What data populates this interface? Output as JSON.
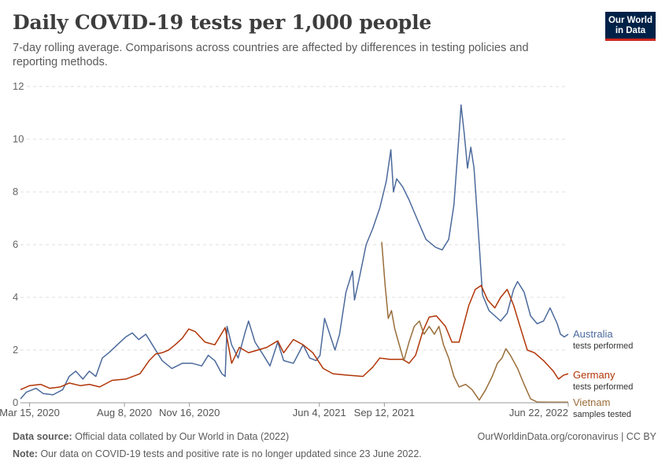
{
  "header": {
    "title": "Daily COVID-19 tests per 1,000 people",
    "subtitle": "7-day rolling average. Comparisons across countries are affected by differences in testing policies and reporting methods.",
    "logo_line1": "Our World",
    "logo_line2": "in Data"
  },
  "footer": {
    "source_label": "Data source:",
    "source_text": "Official data collated by Our World in Data (2022)",
    "link_text": "OurWorldinData.org/coronavirus | CC BY",
    "note_label": "Note:",
    "note_text": "Our data on COVID-19 tests and positive rate is no longer updated since 23 June 2022."
  },
  "colors": {
    "australia": "#4c6a9c",
    "germany": "#b13507",
    "vietnam": "#996d39",
    "grid": "#dddddd",
    "axis": "#999999",
    "brand": "#002147",
    "brand_accent": "#ce261e"
  },
  "chart_data": {
    "type": "line",
    "title": "Daily COVID-19 tests per 1,000 people",
    "xlabel": "",
    "ylabel": "",
    "ylim": [
      0,
      12
    ],
    "yticks": [
      "0",
      "2",
      "4",
      "6",
      "8",
      "10",
      "12"
    ],
    "x_range": [
      "2020-03-01",
      "2022-06-22"
    ],
    "x_ticks": [
      {
        "date": "2020-03-15",
        "label": "Mar 15, 2020"
      },
      {
        "date": "2020-08-08",
        "label": "Aug 8, 2020"
      },
      {
        "date": "2020-11-16",
        "label": "Nov 16, 2020"
      },
      {
        "date": "2021-06-04",
        "label": "Jun 4, 2021"
      },
      {
        "date": "2021-09-12",
        "label": "Sep 12, 2021"
      },
      {
        "date": "2022-06-22",
        "label": "Jun 22, 2022"
      }
    ],
    "grid": true,
    "legend_placement": "right (inline labels)",
    "series": [
      {
        "name": "Australia",
        "sublabel": "tests performed",
        "color": "#4c6a9c",
        "points": [
          [
            "2020-03-01",
            0.15
          ],
          [
            "2020-03-10",
            0.4
          ],
          [
            "2020-03-25",
            0.55
          ],
          [
            "2020-04-05",
            0.35
          ],
          [
            "2020-04-20",
            0.3
          ],
          [
            "2020-05-05",
            0.5
          ],
          [
            "2020-05-15",
            1.0
          ],
          [
            "2020-05-25",
            1.2
          ],
          [
            "2020-06-05",
            0.9
          ],
          [
            "2020-06-15",
            1.2
          ],
          [
            "2020-06-25",
            1.0
          ],
          [
            "2020-07-05",
            1.7
          ],
          [
            "2020-07-15",
            1.9
          ],
          [
            "2020-07-28",
            2.2
          ],
          [
            "2020-08-10",
            2.5
          ],
          [
            "2020-08-20",
            2.65
          ],
          [
            "2020-08-30",
            2.4
          ],
          [
            "2020-09-10",
            2.6
          ],
          [
            "2020-09-20",
            2.2
          ],
          [
            "2020-10-05",
            1.6
          ],
          [
            "2020-10-20",
            1.3
          ],
          [
            "2020-11-05",
            1.5
          ],
          [
            "2020-11-20",
            1.5
          ],
          [
            "2020-12-05",
            1.4
          ],
          [
            "2020-12-15",
            1.8
          ],
          [
            "2020-12-25",
            1.6
          ],
          [
            "2021-01-05",
            1.1
          ],
          [
            "2021-01-10",
            1.0
          ],
          [
            "2021-01-13",
            2.9
          ],
          [
            "2021-01-20",
            2.2
          ],
          [
            "2021-01-30",
            1.7
          ],
          [
            "2021-02-10",
            2.7
          ],
          [
            "2021-02-15",
            3.1
          ],
          [
            "2021-02-25",
            2.3
          ],
          [
            "2021-03-10",
            1.8
          ],
          [
            "2021-03-20",
            1.4
          ],
          [
            "2021-04-01",
            2.3
          ],
          [
            "2021-04-10",
            1.6
          ],
          [
            "2021-04-25",
            1.5
          ],
          [
            "2021-05-10",
            2.2
          ],
          [
            "2021-05-20",
            1.7
          ],
          [
            "2021-05-30",
            1.6
          ],
          [
            "2021-06-05",
            1.8
          ],
          [
            "2021-06-12",
            3.2
          ],
          [
            "2021-06-20",
            2.6
          ],
          [
            "2021-06-28",
            2.0
          ],
          [
            "2021-07-05",
            2.6
          ],
          [
            "2021-07-15",
            4.2
          ],
          [
            "2021-07-25",
            5.0
          ],
          [
            "2021-07-28",
            3.9
          ],
          [
            "2021-08-05",
            4.8
          ],
          [
            "2021-08-15",
            6.0
          ],
          [
            "2021-08-25",
            6.6
          ],
          [
            "2021-09-05",
            7.4
          ],
          [
            "2021-09-15",
            8.4
          ],
          [
            "2021-09-22",
            9.6
          ],
          [
            "2021-09-26",
            8.0
          ],
          [
            "2021-10-01",
            8.5
          ],
          [
            "2021-10-10",
            8.2
          ],
          [
            "2021-10-20",
            7.7
          ],
          [
            "2021-11-01",
            7.0
          ],
          [
            "2021-11-15",
            6.2
          ],
          [
            "2021-11-30",
            5.9
          ],
          [
            "2021-12-10",
            5.8
          ],
          [
            "2021-12-20",
            6.2
          ],
          [
            "2021-12-28",
            7.5
          ],
          [
            "2022-01-05",
            10.2
          ],
          [
            "2022-01-08",
            11.3
          ],
          [
            "2022-01-13",
            10.2
          ],
          [
            "2022-01-18",
            8.9
          ],
          [
            "2022-01-23",
            9.7
          ],
          [
            "2022-01-28",
            8.9
          ],
          [
            "2022-02-05",
            6.0
          ],
          [
            "2022-02-10",
            4.1
          ],
          [
            "2022-02-20",
            3.5
          ],
          [
            "2022-03-01",
            3.3
          ],
          [
            "2022-03-10",
            3.1
          ],
          [
            "2022-03-20",
            3.4
          ],
          [
            "2022-03-30",
            4.3
          ],
          [
            "2022-04-05",
            4.6
          ],
          [
            "2022-04-15",
            4.2
          ],
          [
            "2022-04-25",
            3.3
          ],
          [
            "2022-05-05",
            3.0
          ],
          [
            "2022-05-15",
            3.1
          ],
          [
            "2022-05-25",
            3.6
          ],
          [
            "2022-06-05",
            3.0
          ],
          [
            "2022-06-10",
            2.6
          ],
          [
            "2022-06-16",
            2.5
          ],
          [
            "2022-06-22",
            2.6
          ]
        ]
      },
      {
        "name": "Germany",
        "sublabel": "tests performed",
        "color": "#b13507",
        "points": [
          [
            "2020-03-01",
            0.5
          ],
          [
            "2020-03-15",
            0.65
          ],
          [
            "2020-04-01",
            0.7
          ],
          [
            "2020-04-15",
            0.55
          ],
          [
            "2020-05-01",
            0.6
          ],
          [
            "2020-05-15",
            0.75
          ],
          [
            "2020-06-01",
            0.65
          ],
          [
            "2020-06-15",
            0.7
          ],
          [
            "2020-07-01",
            0.6
          ],
          [
            "2020-07-20",
            0.85
          ],
          [
            "2020-08-10",
            0.9
          ],
          [
            "2020-09-01",
            1.1
          ],
          [
            "2020-09-15",
            1.6
          ],
          [
            "2020-09-25",
            1.85
          ],
          [
            "2020-10-05",
            1.9
          ],
          [
            "2020-10-15",
            2.0
          ],
          [
            "2020-10-25",
            2.2
          ],
          [
            "2020-11-05",
            2.45
          ],
          [
            "2020-11-15",
            2.8
          ],
          [
            "2020-11-25",
            2.7
          ],
          [
            "2020-12-10",
            2.3
          ],
          [
            "2020-12-25",
            2.2
          ],
          [
            "2021-01-10",
            2.85
          ],
          [
            "2021-01-20",
            1.5
          ],
          [
            "2021-02-01",
            2.1
          ],
          [
            "2021-02-15",
            1.9
          ],
          [
            "2021-03-01",
            2.0
          ],
          [
            "2021-03-15",
            2.1
          ],
          [
            "2021-04-01",
            2.35
          ],
          [
            "2021-04-10",
            1.9
          ],
          [
            "2021-04-25",
            2.4
          ],
          [
            "2021-05-10",
            2.2
          ],
          [
            "2021-05-25",
            1.9
          ],
          [
            "2021-06-10",
            1.3
          ],
          [
            "2021-06-25",
            1.1
          ],
          [
            "2021-07-15",
            1.05
          ],
          [
            "2021-08-10",
            1.0
          ],
          [
            "2021-08-25",
            1.35
          ],
          [
            "2021-09-05",
            1.7
          ],
          [
            "2021-09-20",
            1.65
          ],
          [
            "2021-10-10",
            1.65
          ],
          [
            "2021-10-20",
            1.5
          ],
          [
            "2021-10-30",
            1.8
          ],
          [
            "2021-11-10",
            2.7
          ],
          [
            "2021-11-20",
            3.25
          ],
          [
            "2021-12-01",
            3.3
          ],
          [
            "2021-12-15",
            2.9
          ],
          [
            "2021-12-25",
            2.3
          ],
          [
            "2022-01-05",
            2.3
          ],
          [
            "2022-01-20",
            3.7
          ],
          [
            "2022-01-30",
            4.3
          ],
          [
            "2022-02-08",
            4.45
          ],
          [
            "2022-02-18",
            3.9
          ],
          [
            "2022-03-01",
            3.6
          ],
          [
            "2022-03-10",
            4.0
          ],
          [
            "2022-03-20",
            4.3
          ],
          [
            "2022-03-30",
            3.7
          ],
          [
            "2022-04-10",
            2.8
          ],
          [
            "2022-04-20",
            2.0
          ],
          [
            "2022-05-01",
            1.9
          ],
          [
            "2022-05-15",
            1.6
          ],
          [
            "2022-05-30",
            1.2
          ],
          [
            "2022-06-07",
            0.9
          ],
          [
            "2022-06-15",
            1.05
          ],
          [
            "2022-06-22",
            1.1
          ]
        ]
      },
      {
        "name": "Vietnam",
        "sublabel": "samples tested",
        "color": "#996d39",
        "points": [
          [
            "2021-09-08",
            6.1
          ],
          [
            "2021-09-13",
            4.5
          ],
          [
            "2021-09-18",
            3.2
          ],
          [
            "2021-09-23",
            3.5
          ],
          [
            "2021-09-28",
            2.8
          ],
          [
            "2021-10-05",
            2.2
          ],
          [
            "2021-10-12",
            1.6
          ],
          [
            "2021-10-20",
            2.3
          ],
          [
            "2021-10-28",
            2.9
          ],
          [
            "2021-11-05",
            3.1
          ],
          [
            "2021-11-12",
            2.6
          ],
          [
            "2021-11-20",
            2.9
          ],
          [
            "2021-11-28",
            2.6
          ],
          [
            "2021-12-05",
            2.9
          ],
          [
            "2021-12-12",
            2.2
          ],
          [
            "2021-12-20",
            1.7
          ],
          [
            "2021-12-28",
            1.0
          ],
          [
            "2022-01-05",
            0.6
          ],
          [
            "2022-01-15",
            0.7
          ],
          [
            "2022-01-25",
            0.5
          ],
          [
            "2022-02-05",
            0.1
          ],
          [
            "2022-02-15",
            0.5
          ],
          [
            "2022-02-25",
            1.0
          ],
          [
            "2022-03-05",
            1.5
          ],
          [
            "2022-03-12",
            1.7
          ],
          [
            "2022-03-18",
            2.05
          ],
          [
            "2022-03-25",
            1.8
          ],
          [
            "2022-04-05",
            1.3
          ],
          [
            "2022-04-15",
            0.7
          ],
          [
            "2022-04-25",
            0.15
          ],
          [
            "2022-05-05",
            0.03
          ],
          [
            "2022-05-20",
            0.02
          ],
          [
            "2022-06-22",
            0.02
          ]
        ]
      }
    ]
  }
}
